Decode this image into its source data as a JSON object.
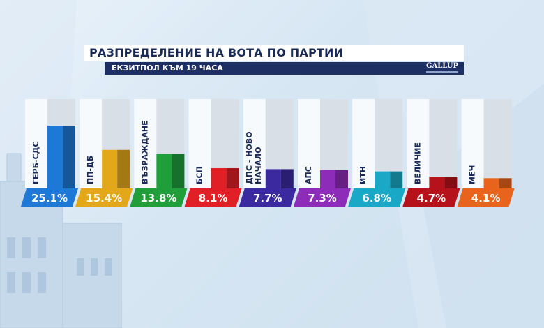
{
  "header": {
    "title": "РАЗПРЕДЕЛЕНИЕ НА ВОТА ПО ПАРТИИ",
    "subtitle": "ЕКЗИТПОЛ КЪМ 19 ЧАСА",
    "logo_text": "GALLUP"
  },
  "chart_data": {
    "type": "bar",
    "categories": [
      "ГЕРБ-СДС",
      "ПП-ДБ",
      "ВЪЗРАЖДАНЕ",
      "БСП",
      "ДПС - НОВО НАЧАЛО",
      "АПС",
      "ИТН",
      "ВЕЛИЧИЕ",
      "МЕЧ"
    ],
    "category_lines": [
      [
        "ГЕРБ-СДС"
      ],
      [
        "ПП-ДБ"
      ],
      [
        "ВЪЗРАЖДАНЕ"
      ],
      [
        "БСП"
      ],
      [
        "ДПС - НОВО",
        "НАЧАЛО"
      ],
      [
        "АПС"
      ],
      [
        "ИТН"
      ],
      [
        "ВЕЛИЧИЕ"
      ],
      [
        "МЕЧ"
      ]
    ],
    "values": [
      25.1,
      15.4,
      13.8,
      8.1,
      7.7,
      7.3,
      6.8,
      4.7,
      4.1
    ],
    "value_labels": [
      "25.1%",
      "15.4%",
      "13.8%",
      "8.1%",
      "7.7%",
      "7.3%",
      "6.8%",
      "4.7%",
      "4.1%"
    ],
    "colors": [
      "#1e78d6",
      "#e3a81a",
      "#1f9e3a",
      "#e01f26",
      "#3b2a9f",
      "#8d2cb8",
      "#19a8c6",
      "#b5121b",
      "#e8641c"
    ],
    "ylim": [
      0,
      100
    ]
  }
}
